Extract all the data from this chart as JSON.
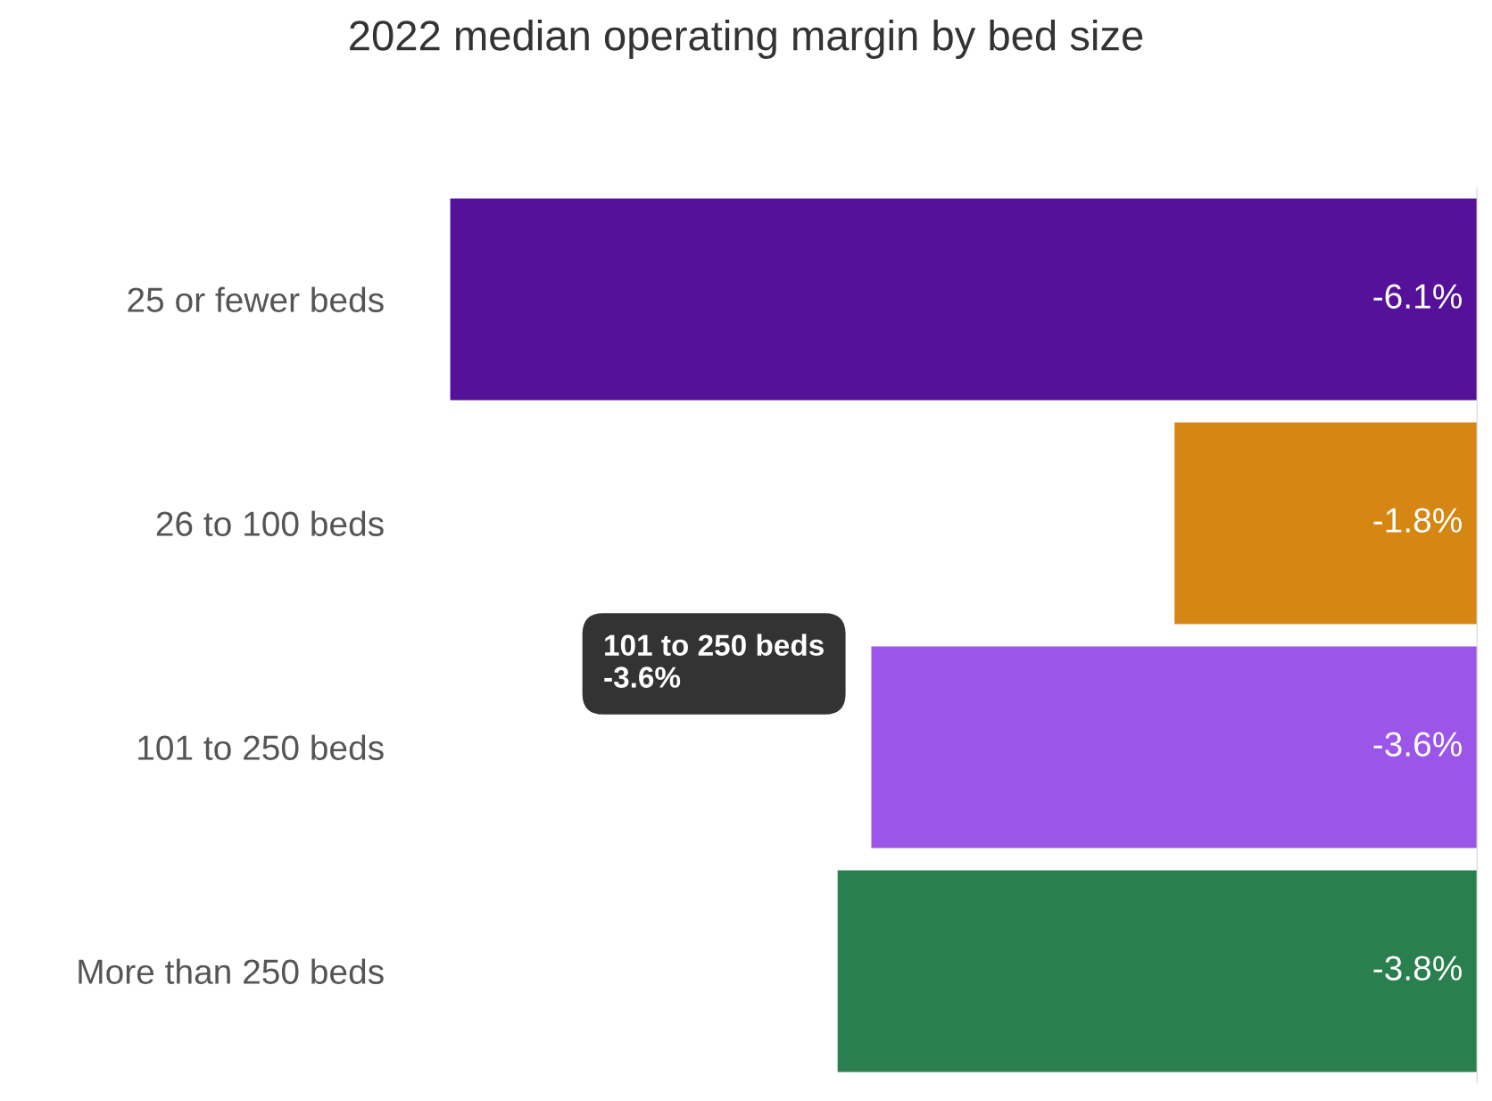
{
  "chart_data": {
    "type": "bar",
    "orientation": "horizontal",
    "title": "2022 median operating margin by bed size",
    "categories": [
      "25 or fewer beds",
      "26 to 100 beds",
      "101 to 250 beds",
      "More than 250 beds"
    ],
    "values": [
      -6.1,
      -1.8,
      -3.6,
      -3.8
    ],
    "colors": [
      "#56119a",
      "#d68612",
      "#9b55e8",
      "#2a7f4e"
    ],
    "value_labels": [
      "-6.1%",
      "-1.8%",
      "-3.6%",
      "-3.8%"
    ],
    "tick_labels": "y",
    "grid": false,
    "legend": false,
    "annotations": [
      "101 to 250 beds\n-3.6%"
    ]
  }
}
